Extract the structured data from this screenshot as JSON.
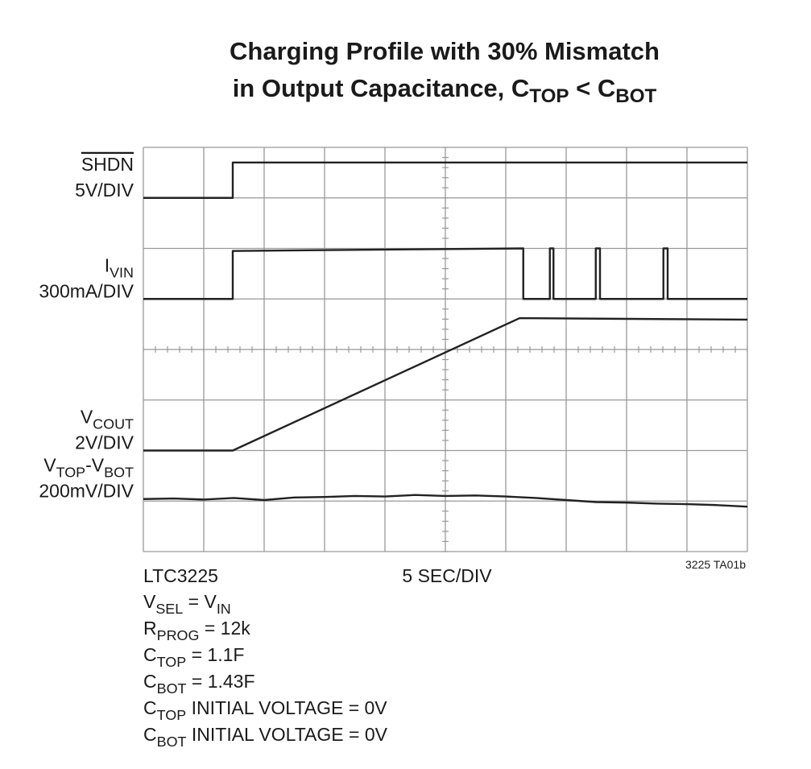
{
  "chart_data": {
    "type": "scope",
    "title": [
      [
        "Charging Profile with 30% Mismatch"
      ],
      [
        "in Output Capacitance, C",
        {
          "sub": "TOP"
        },
        " < C",
        {
          "sub": "BOT"
        }
      ]
    ],
    "xlim": [
      0,
      10
    ],
    "ylim": [
      0,
      8
    ],
    "xticks": [
      0,
      1,
      2,
      3,
      4,
      5,
      6,
      7,
      8,
      9,
      10
    ],
    "yticks": [
      0,
      1,
      2,
      3,
      4,
      5,
      6,
      7,
      8
    ],
    "grid": true,
    "color": "#222222",
    "series": [
      {
        "name": [
          "SHDN"
        ],
        "overline": true,
        "scale": "5V/DIV",
        "x": [
          0,
          1.48,
          1.48,
          10
        ],
        "values": [
          7.0,
          7.0,
          7.7,
          7.7
        ]
      },
      {
        "name": [
          "I",
          {
            "sub": "VIN"
          }
        ],
        "scale": "300mA/DIV",
        "x": [
          0,
          1.48,
          1.48,
          6.29,
          6.29,
          6.73,
          6.73,
          6.79,
          6.79,
          7.49,
          7.49,
          7.56,
          7.56,
          8.61,
          8.61,
          8.68,
          8.68,
          10
        ],
        "values": [
          5,
          5,
          5.95,
          6,
          5,
          5,
          6,
          6,
          5,
          5,
          6,
          6,
          5,
          5,
          6,
          6,
          5,
          5
        ]
      },
      {
        "name": [
          "V",
          {
            "sub": "COUT"
          }
        ],
        "scale": "2V/DIV",
        "x": [
          0,
          1.48,
          6.23,
          10
        ],
        "values": [
          2.0,
          2.0,
          4.62,
          4.59
        ]
      },
      {
        "name": [
          "V",
          {
            "sub": "TOP"
          },
          "-V",
          {
            "sub": "BOT"
          }
        ],
        "scale": "200mV/DIV",
        "x": [
          0,
          0.5,
          1,
          1.5,
          2,
          2.5,
          3,
          3.5,
          4,
          4.5,
          5,
          5.5,
          6,
          6.5,
          7,
          7.5,
          8,
          8.5,
          9,
          9.5,
          10
        ],
        "values": [
          1.04,
          1.05,
          1.03,
          1.06,
          1.02,
          1.07,
          1.08,
          1.1,
          1.09,
          1.12,
          1.1,
          1.11,
          1.09,
          1.06,
          1.02,
          0.98,
          0.97,
          0.95,
          0.94,
          0.92,
          0.89
        ]
      }
    ],
    "part": "LTC3225",
    "xlabel": "5 SEC/DIV",
    "figure_id": "3225 TA01b",
    "notes": [
      [
        "V",
        {
          "sub": "SEL"
        },
        " = V",
        {
          "sub": "IN"
        }
      ],
      [
        "R",
        {
          "sub": "PROG"
        },
        " = 12k"
      ],
      [
        "C",
        {
          "sub": "TOP"
        },
        " = 1.1F"
      ],
      [
        "C",
        {
          "sub": "BOT"
        },
        " = 1.43F"
      ],
      [
        "C",
        {
          "sub": "TOP"
        },
        " INITIAL VOLTAGE = 0V"
      ],
      [
        "C",
        {
          "sub": "BOT"
        },
        " INITIAL VOLTAGE = 0V"
      ]
    ]
  }
}
